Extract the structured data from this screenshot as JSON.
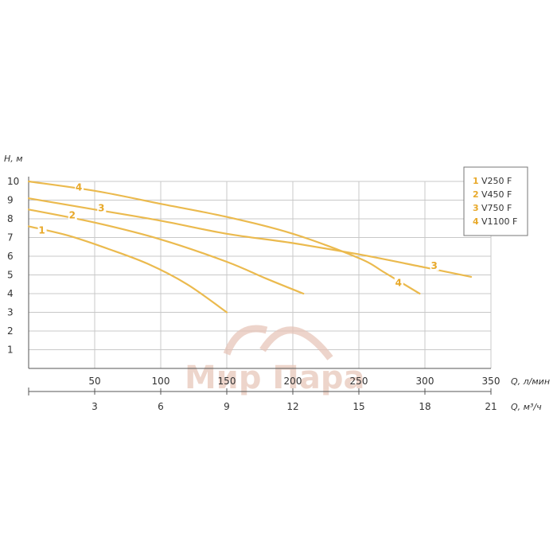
{
  "chart_data": {
    "type": "line",
    "y_axis": {
      "label": "H, м",
      "ticks": [
        "1",
        "2",
        "3",
        "4",
        "5",
        "6",
        "7",
        "8",
        "9",
        "10"
      ],
      "range": [
        0,
        10
      ]
    },
    "x_axis_primary": {
      "label": "Q, л/мин",
      "ticks": [
        "50",
        "100",
        "150",
        "200",
        "250",
        "300",
        "350"
      ],
      "range": [
        0,
        350
      ]
    },
    "x_axis_secondary": {
      "label": "Q, м³/ч",
      "ticks": [
        "3",
        "6",
        "9",
        "12",
        "15",
        "18",
        "21"
      ],
      "range": [
        0,
        21
      ]
    },
    "grid": true,
    "legend_position": "top-right",
    "series": [
      {
        "id": "1",
        "name": "V250 F",
        "label": "1",
        "points": [
          [
            0,
            7.6
          ],
          [
            30,
            7.1
          ],
          [
            60,
            6.4
          ],
          [
            90,
            5.6
          ],
          [
            120,
            4.5
          ],
          [
            150,
            3.0
          ]
        ]
      },
      {
        "id": "2",
        "name": "V450 F",
        "label": "2",
        "points": [
          [
            0,
            8.5
          ],
          [
            50,
            7.8
          ],
          [
            100,
            6.9
          ],
          [
            150,
            5.7
          ],
          [
            180,
            4.8
          ],
          [
            208,
            4.0
          ]
        ]
      },
      {
        "id": "3",
        "name": "V750 F",
        "label": "3",
        "points": [
          [
            0,
            9.1
          ],
          [
            50,
            8.5
          ],
          [
            100,
            7.9
          ],
          [
            150,
            7.2
          ],
          [
            200,
            6.7
          ],
          [
            250,
            6.1
          ],
          [
            300,
            5.4
          ],
          [
            335,
            4.9
          ]
        ]
      },
      {
        "id": "4",
        "name": "V1100 F",
        "label": "4",
        "points": [
          [
            0,
            10.0
          ],
          [
            50,
            9.5
          ],
          [
            100,
            8.8
          ],
          [
            150,
            8.1
          ],
          [
            200,
            7.2
          ],
          [
            250,
            5.9
          ],
          [
            270,
            5.1
          ],
          [
            296,
            4.0
          ]
        ]
      }
    ],
    "curve_label_positions": [
      {
        "series": "1",
        "x": 10,
        "y": 7.3
      },
      {
        "series": "2",
        "x": 33,
        "y": 8.1
      },
      {
        "series": "3",
        "x": 55,
        "y": 8.5
      },
      {
        "series": "4",
        "x": 38,
        "y": 9.6
      },
      {
        "series": "4",
        "x": 280,
        "y": 4.5
      },
      {
        "series": "3",
        "x": 307,
        "y": 5.4
      }
    ]
  },
  "colors": {
    "curve": "#ebba4e",
    "curve_label": "#e8a92a",
    "grid": "#c8c8c8",
    "axis": "#555555",
    "watermark": "#e0b9ab"
  },
  "watermark": {
    "text": "Мир Пара"
  }
}
